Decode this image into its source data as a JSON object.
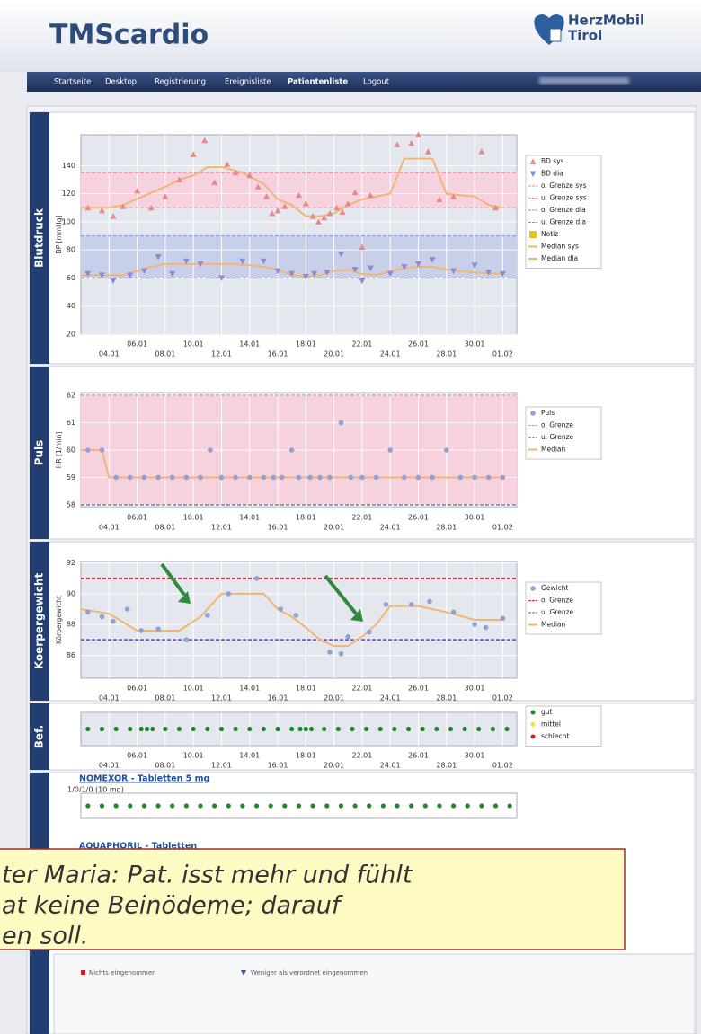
{
  "header": {
    "title": "TMScardio",
    "brand": [
      "HerzMobil",
      "Tirol"
    ]
  },
  "nav": [
    "Startseite",
    "Desktop",
    "Registrierung",
    "Ereignisliste",
    "Patientenliste",
    "Logout"
  ],
  "nav_active": 4,
  "x_axis": {
    "xlim": [
      2,
      33
    ],
    "xticks": [
      {
        "value": 4,
        "label": "04.01"
      },
      {
        "value": 6,
        "label": "06.01"
      },
      {
        "value": 8,
        "label": "08.01"
      },
      {
        "value": 10,
        "label": "10.01"
      },
      {
        "value": 12,
        "label": "12.01"
      },
      {
        "value": 14,
        "label": "14.01"
      },
      {
        "value": 16,
        "label": "16.01"
      },
      {
        "value": 18,
        "label": "18.01"
      },
      {
        "value": 20,
        "label": "20.01"
      },
      {
        "value": 22,
        "label": "22.01"
      },
      {
        "value": 24,
        "label": "24.01"
      },
      {
        "value": 26,
        "label": "26.01"
      },
      {
        "value": 28,
        "label": "28.01"
      },
      {
        "value": 30,
        "label": "30.01"
      },
      {
        "value": 32,
        "label": "01.02"
      }
    ]
  },
  "panels": [
    {
      "title": "Blutdruck",
      "chart": {
        "type": "scatter",
        "y_label": "BP [mmHg]",
        "ylim": [
          20,
          162
        ],
        "yticks": [
          20,
          40,
          60,
          80,
          100,
          120,
          140
        ],
        "series": [
          {
            "name": "BD sys",
            "kind": "scatter",
            "marker": "triangle-up",
            "color": "#e58a8a",
            "x": [
              2.5,
              3.5,
              4.3,
              5,
              6,
              7,
              8,
              9,
              10,
              10.8,
              11.5,
              12.4,
              13,
              14,
              14.6,
              15.2,
              15.6,
              16,
              16.5,
              17.5,
              18,
              18.5,
              18.9,
              19.3,
              19.7,
              20.2,
              20.6,
              21,
              21.5,
              22,
              22.6,
              24.5,
              25.5,
              26,
              26.7,
              27.5,
              28.5,
              30.5,
              31.5
            ],
            "values": [
              110,
              108,
              104,
              111,
              122,
              110,
              118,
              130,
              148,
              158,
              128,
              141,
              135,
              133,
              125,
              118,
              106,
              108,
              111,
              119,
              113,
              104,
              100,
              103,
              106,
              110,
              107,
              113,
              121,
              82,
              119,
              155,
              156,
              162,
              150,
              116,
              118,
              150,
              110
            ]
          },
          {
            "name": "BD dia",
            "kind": "scatter",
            "marker": "triangle-down",
            "color": "#8a8ad8",
            "x": [
              2.5,
              3.5,
              4.3,
              5.5,
              6.5,
              7.5,
              8.5,
              9.5,
              10.5,
              12,
              13.5,
              15,
              16,
              17,
              18,
              18.6,
              19.5,
              20.5,
              21.5,
              22,
              22.6,
              24,
              25,
              26,
              27,
              28.5,
              30,
              31,
              32
            ],
            "values": [
              63,
              62,
              58,
              62,
              65,
              75,
              63,
              72,
              70,
              60,
              72,
              72,
              65,
              63,
              61,
              63,
              64,
              77,
              66,
              58,
              67,
              63,
              68,
              70,
              73,
              65,
              69,
              64,
              63
            ]
          },
          {
            "name": "o. Grenze sys",
            "kind": "limit",
            "color": "#e58aa0",
            "value": 135,
            "band": "#f6d2df"
          },
          {
            "name": "u. Grenze sys",
            "kind": "limit",
            "color": "#e58aa0",
            "value": 110
          },
          {
            "name": "o. Grenze dia",
            "kind": "limit",
            "color": "#8a8ad8",
            "value": 90,
            "band": "#c8cfe9"
          },
          {
            "name": "u. Grenze dia",
            "kind": "limit",
            "color": "#8a8ad8",
            "value": 60
          },
          {
            "name": "Notiz",
            "kind": "note",
            "color": "#e8c020"
          },
          {
            "name": "Median sys",
            "kind": "line",
            "color": "#f3b572",
            "x": [
              2,
              4,
              5,
              8,
              9,
              10,
              11,
              12,
              13.5,
              15,
              16,
              17,
              18,
              19,
              20,
              21,
              22,
              23,
              24,
              25,
              27,
              28,
              29,
              30,
              31,
              32
            ],
            "values": [
              110,
              110,
              112,
              125,
              130,
              133,
              139,
              139,
              135,
              127,
              116,
              112,
              104,
              104,
              106,
              112,
              116,
              118,
              120,
              145,
              145,
              120,
              119,
              118,
              112,
              110
            ]
          },
          {
            "name": "Median dia",
            "kind": "line",
            "color": "#f3b572",
            "x": [
              2,
              5,
              6,
              7,
              8,
              13,
              14,
              15,
              16,
              17,
              18,
              19,
              20,
              21,
              22,
              23,
              24,
              25,
              26,
              27,
              28,
              30,
              32
            ],
            "values": [
              62,
              62,
              65,
              68,
              70,
              70,
              69,
              68,
              66,
              62,
              61,
              62,
              65,
              66,
              63,
              62,
              65,
              67,
              68,
              68,
              66,
              64,
              63
            ]
          }
        ]
      }
    },
    {
      "title": "Puls",
      "chart": {
        "type": "scatter",
        "y_label": "HR [1/min]",
        "ylim": [
          57.9,
          62.1
        ],
        "yticks": [
          58,
          59,
          60,
          61,
          62
        ],
        "series": [
          {
            "name": "Puls",
            "kind": "scatter",
            "marker": "circle",
            "color": "#8fa2d4",
            "x": [
              2.5,
              3.5,
              4.5,
              5.5,
              6.5,
              7.5,
              8.5,
              9.5,
              10.5,
              11.2,
              12,
              13,
              14,
              15,
              15.7,
              16.3,
              17,
              17.5,
              18.3,
              19,
              19.7,
              20.5,
              21.2,
              22,
              23,
              24,
              25,
              26,
              27,
              28,
              29,
              30,
              31,
              32
            ],
            "values": [
              60,
              60,
              59,
              59,
              59,
              59,
              59,
              59,
              59,
              60,
              59,
              59,
              59,
              59,
              59,
              59,
              60,
              59,
              59,
              59,
              59,
              61,
              59,
              59,
              59,
              60,
              59,
              59,
              59,
              60,
              59,
              59,
              59,
              59
            ]
          },
          {
            "name": "o. Grenze",
            "kind": "limit",
            "color": "#e58aa0",
            "value": 62,
            "band": "#f6d2df"
          },
          {
            "name": "u. Grenze",
            "kind": "limit",
            "color": "#555577",
            "value": 58
          },
          {
            "name": "Median",
            "kind": "line",
            "color": "#f3b572",
            "x": [
              2,
              3.5,
              4,
              32
            ],
            "values": [
              60,
              60,
              59,
              59
            ]
          }
        ]
      }
    },
    {
      "title": "Koerpergewicht",
      "chart": {
        "type": "scatter",
        "y_label": "Körpergewicht",
        "ylim": [
          84.5,
          92.1
        ],
        "yticks": [
          86,
          88,
          90,
          92
        ],
        "series": [
          {
            "name": "Gewicht",
            "kind": "scatter",
            "marker": "circle",
            "color": "#8fa2d4",
            "x": [
              2.5,
              3.5,
              4.3,
              5.3,
              6.3,
              7.5,
              9.5,
              11,
              12.5,
              14.5,
              16.2,
              17.3,
              19.7,
              20.5,
              21,
              22.5,
              23.7,
              25.5,
              26.8,
              28.5,
              30,
              30.8,
              32
            ],
            "values": [
              88.8,
              88.5,
              88.2,
              89,
              87.6,
              87.7,
              87,
              88.6,
              90,
              91,
              89,
              88.6,
              86.2,
              86.1,
              87.2,
              87.5,
              89.3,
              89.3,
              89.5,
              88.8,
              88,
              87.8,
              88.4
            ]
          },
          {
            "name": "o. Grenze",
            "kind": "limit",
            "color": "#e03040",
            "value": 91
          },
          {
            "name": "u. Grenze",
            "kind": "limit",
            "color": "#6a5acd",
            "value": 87
          },
          {
            "name": "Median",
            "kind": "line",
            "color": "#f3b572",
            "x": [
              2,
              4,
              6,
              9,
              10.5,
              12,
              15,
              16,
              17,
              18,
              19,
              20,
              21,
              22,
              23,
              24,
              26,
              28,
              30,
              32
            ],
            "values": [
              89,
              88.7,
              87.6,
              87.6,
              88.5,
              90,
              90,
              89,
              88.5,
              87.8,
              87,
              86.6,
              86.6,
              87.2,
              88,
              89.2,
              89.2,
              88.8,
              88.3,
              88.3
            ]
          }
        ]
      }
    },
    {
      "title": "Bef.",
      "chart": {
        "type": "dots",
        "series": [
          {
            "name": "gut",
            "kind": "dots",
            "color": "#1f8a2a",
            "x": [
              2.5,
              3.5,
              4.5,
              5.5,
              6.3,
              6.7,
              7.1,
              8,
              9,
              10,
              11,
              12,
              13,
              14,
              15,
              16,
              17,
              17.6,
              18,
              18.4,
              19.3,
              20.3,
              21.3,
              22.3,
              23.3,
              24.3,
              25.3,
              26.3,
              27.3,
              28.3,
              29.3,
              30.3,
              31.3,
              32.3
            ]
          },
          {
            "name": "mittel",
            "kind": "dots",
            "color": "#f0e040",
            "x": []
          },
          {
            "name": "schlecht",
            "kind": "dots",
            "color": "#d02020",
            "x": []
          }
        ]
      }
    }
  ],
  "medication": {
    "items": [
      {
        "name": "NOMEXOR - Tabletten 5 mg",
        "dose": "1/0/1/0 (10 mg)",
        "color": "#1f8a2a",
        "x": [
          2.5,
          3.5,
          4.5,
          5.5,
          6.5,
          7.5,
          8.5,
          9.5,
          10.5,
          11.5,
          12.5,
          13.5,
          14.5,
          15.5,
          16.5,
          17.5,
          18.5,
          19.5,
          20.5,
          21.5,
          22.5,
          23.5,
          24.5,
          25.5,
          26.5,
          27.5,
          28.5,
          29.5,
          30.5,
          31.5,
          32.5
        ]
      },
      {
        "name": "AQUAPHORIL - Tabletten"
      }
    ],
    "legend": [
      "Nichts eingenommen",
      "Weniger als verordnet eingenommen"
    ]
  },
  "note": [
    "ter Maria: Pat. isst mehr und fühlt",
    "at keine Beinödeme; darauf",
    "en soll."
  ]
}
